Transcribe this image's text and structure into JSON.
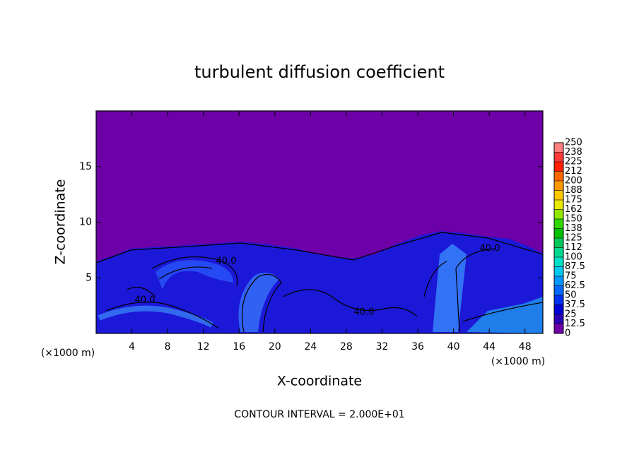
{
  "chart_data": {
    "type": "contour",
    "title": "turbulent diffusion coefficient",
    "x_label": "X-coordinate",
    "y_label": "Z-coordinate",
    "x_unit": "(×1000 m)",
    "y_unit": "(×1000 m)",
    "footer": "CONTOUR INTERVAL = 2.000E+01",
    "xlim": [
      0,
      50
    ],
    "xticks": [
      4,
      8,
      12,
      16,
      20,
      24,
      28,
      32,
      36,
      40,
      44,
      48
    ],
    "ylim": [
      0,
      20
    ],
    "yticks": [
      5,
      10,
      15
    ],
    "contour_labels": [
      "40.0",
      "40.0",
      "40.0",
      "40.0"
    ],
    "colorbar": {
      "levels": [
        0,
        12.5,
        25,
        37.5,
        50,
        62.5,
        75,
        87.5,
        100,
        112,
        125,
        138,
        150,
        162,
        175,
        188,
        200,
        212,
        225,
        238,
        250
      ],
      "colors": [
        "#6e00a8",
        "#2a00b4",
        "#0000d8",
        "#0030f0",
        "#0068ff",
        "#0098ff",
        "#00c8f0",
        "#00e0c8",
        "#00d890",
        "#00c858",
        "#00c000",
        "#30d800",
        "#90e800",
        "#e8e800",
        "#ffc800",
        "#ff9800",
        "#ff6800",
        "#ff2000",
        "#ff3838",
        "#ff8080"
      ]
    }
  }
}
